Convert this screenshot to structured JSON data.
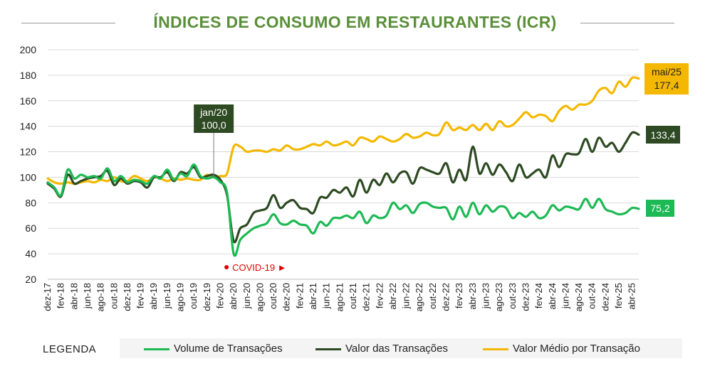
{
  "title": "ÍNDICES DE CONSUMO EM RESTAURANTES (ICR)",
  "legend_title": "LEGENDA",
  "colors": {
    "volume": "#1db954",
    "valor": "#2d4a22",
    "medio": "#f5b800",
    "title": "#5a8f3a",
    "covid": "#e00000"
  },
  "chart_data": {
    "type": "line",
    "title": "ÍNDICES DE CONSUMO EM RESTAURANTES (ICR)",
    "ylim": [
      20,
      200
    ],
    "yticks": [
      20,
      40,
      60,
      80,
      100,
      120,
      140,
      160,
      180,
      200
    ],
    "grid": true,
    "x_tick_labels": [
      "dez-17",
      "fev-18",
      "abr-18",
      "jun-18",
      "ago-18",
      "out-18",
      "dez-18",
      "fev-19",
      "abr-19",
      "jun-19",
      "ago-19",
      "out-19",
      "dez-19",
      "fev-20",
      "abr-20",
      "jun-20",
      "ago-20",
      "out-20",
      "dez-20",
      "fev-21",
      "abr-21",
      "jun-21",
      "ago-21",
      "out-21",
      "dez-21",
      "fev-22",
      "abr-22",
      "jun-22",
      "ago-22",
      "out-22",
      "dez-22",
      "fev-23",
      "abr-23",
      "jun-23",
      "ago-23",
      "out-23",
      "dez-23",
      "fev-24",
      "abr-24",
      "jun-24",
      "ago-24",
      "out-24",
      "dez-24",
      "fev-25",
      "abr-25"
    ],
    "x": [
      "dez-17",
      "jan-18",
      "fev-18",
      "mar-18",
      "abr-18",
      "mai-18",
      "jun-18",
      "jul-18",
      "ago-18",
      "set-18",
      "out-18",
      "nov-18",
      "dez-18",
      "jan-19",
      "fev-19",
      "mar-19",
      "abr-19",
      "mai-19",
      "jun-19",
      "jul-19",
      "ago-19",
      "set-19",
      "out-19",
      "nov-19",
      "dez-19",
      "jan-20",
      "fev-20",
      "mar-20",
      "abr-20",
      "mai-20",
      "jun-20",
      "jul-20",
      "ago-20",
      "set-20",
      "out-20",
      "nov-20",
      "dez-20",
      "jan-21",
      "fev-21",
      "mar-21",
      "abr-21",
      "mai-21",
      "jun-21",
      "jul-21",
      "ago-21",
      "set-21",
      "out-21",
      "nov-21",
      "dez-21",
      "jan-22",
      "fev-22",
      "mar-22",
      "abr-22",
      "mai-22",
      "jun-22",
      "jul-22",
      "ago-22",
      "set-22",
      "out-22",
      "nov-22",
      "dez-22",
      "jan-23",
      "fev-23",
      "mar-23",
      "abr-23",
      "mai-23",
      "jun-23",
      "jul-23",
      "ago-23",
      "set-23",
      "out-23",
      "nov-23",
      "dez-23",
      "jan-24",
      "fev-24",
      "mar-24",
      "abr-24",
      "mai-24",
      "jun-24",
      "jul-24",
      "ago-24",
      "set-24",
      "out-24",
      "nov-24",
      "dez-24",
      "jan-25",
      "fev-25",
      "mar-25",
      "abr-25",
      "mai-25"
    ],
    "series": [
      {
        "name": "Volume de Transações",
        "color": "#1db954",
        "values": [
          96,
          92,
          86,
          106,
          99,
          102,
          100,
          101,
          99,
          107,
          97,
          101,
          96,
          98,
          97,
          95,
          101,
          99,
          106,
          98,
          103,
          101,
          110,
          101,
          99,
          100,
          96,
          88,
          40,
          51,
          56,
          60,
          62,
          64,
          71,
          64,
          63,
          66,
          63,
          62,
          56,
          65,
          62,
          68,
          68,
          70,
          68,
          73,
          64,
          70,
          68,
          70,
          80,
          75,
          78,
          72,
          79,
          80,
          77,
          76,
          76,
          67,
          77,
          69,
          80,
          71,
          78,
          73,
          77,
          76,
          68,
          72,
          69,
          73,
          68,
          70,
          78,
          74,
          77,
          76,
          75,
          83,
          76,
          83,
          75,
          73,
          71,
          72,
          76,
          75.2
        ]
      },
      {
        "name": "Valor das Transações",
        "color": "#2d4a22",
        "values": [
          95,
          91,
          85,
          102,
          95,
          97,
          99,
          100,
          101,
          105,
          94,
          99,
          95,
          97,
          96,
          92,
          100,
          100,
          104,
          97,
          104,
          103,
          108,
          100,
          101,
          102,
          98,
          86,
          50,
          60,
          63,
          72,
          74,
          76,
          86,
          76,
          80,
          82,
          76,
          75,
          72,
          84,
          84,
          90,
          88,
          92,
          85,
          98,
          88,
          98,
          94,
          103,
          96,
          103,
          104,
          95,
          107,
          106,
          104,
          103,
          111,
          96,
          106,
          98,
          124,
          103,
          111,
          102,
          110,
          104,
          97,
          110,
          100,
          103,
          106,
          100,
          117,
          108,
          118,
          118,
          119,
          130,
          120,
          131,
          124,
          127,
          120,
          127,
          135,
          133.4
        ]
      },
      {
        "name": "Valor Médio por Transação",
        "color": "#f5b800",
        "values": [
          99,
          96,
          95,
          96,
          95,
          96,
          97,
          96,
          98,
          97,
          100,
          97,
          97,
          101,
          99,
          97,
          100,
          99,
          97,
          99,
          98,
          99,
          98,
          98,
          102,
          100,
          101,
          103,
          124,
          124,
          120,
          121,
          121,
          120,
          122,
          121,
          125,
          122,
          122,
          124,
          126,
          125,
          128,
          125,
          126,
          128,
          125,
          131,
          130,
          128,
          132,
          130,
          128,
          130,
          134,
          131,
          132,
          135,
          133,
          134,
          143,
          137,
          139,
          137,
          141,
          137,
          142,
          137,
          144,
          140,
          141,
          146,
          151,
          147,
          149,
          148,
          144,
          152,
          156,
          153,
          157,
          157,
          160,
          168,
          170,
          166,
          175,
          171,
          178,
          177.4
        ]
      }
    ],
    "annotations": {
      "jan20": {
        "label": "jan/20",
        "value": "100,0"
      },
      "covid": {
        "label": "COVID-19 ►"
      },
      "end_volume": "75,2",
      "end_valor": "133,4",
      "end_medio_label": "mai/25",
      "end_medio_value": "177,4"
    }
  }
}
